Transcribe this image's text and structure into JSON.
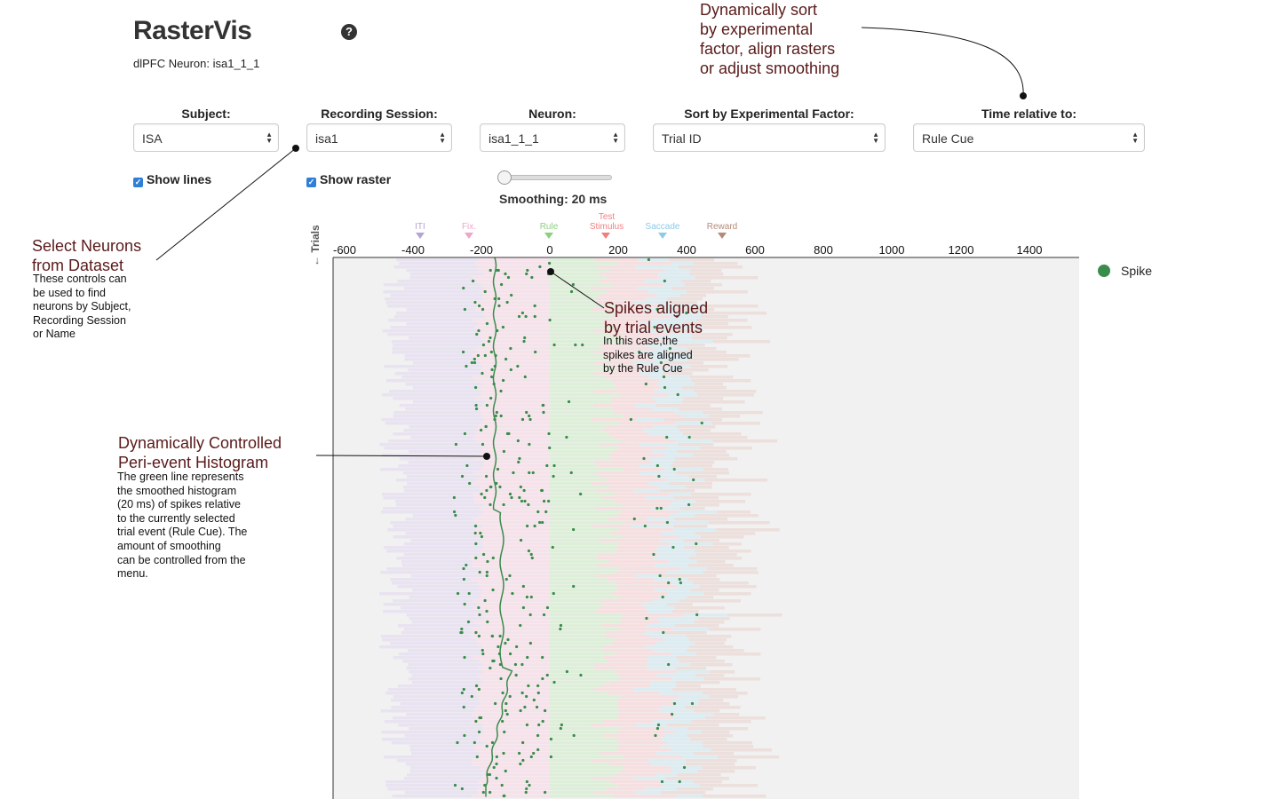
{
  "header": {
    "title": "RasterVis",
    "subtitle": "dlPFC Neuron: isa1_1_1"
  },
  "controls": {
    "subject": {
      "label": "Subject:",
      "value": "ISA"
    },
    "session": {
      "label": "Recording Session:",
      "value": "isa1"
    },
    "neuron": {
      "label": "Neuron:",
      "value": "isa1_1_1"
    },
    "sort": {
      "label": "Sort by Experimental Factor:",
      "value": "Trial ID"
    },
    "time_rel": {
      "label": "Time relative to:",
      "value": "Rule Cue"
    },
    "show_lines": "Show lines",
    "show_raster": "Show raster",
    "smoothing_label": "Smoothing: 20 ms",
    "smoothing_ms": 20
  },
  "events": [
    {
      "name": "ITI",
      "color": "#b7a4d6"
    },
    {
      "name": "Fix.",
      "color": "#f0a6c8"
    },
    {
      "name": "Rule",
      "color": "#8ccf7e"
    },
    {
      "name": "Test Stimulus",
      "color": "#f08080"
    },
    {
      "name": "Saccade",
      "color": "#8ccbe6"
    },
    {
      "name": "Reward",
      "color": "#b58a7a"
    }
  ],
  "axis": {
    "ticks": [
      "-600",
      "-400",
      "-200",
      "0",
      "200",
      "400",
      "600",
      "800",
      "1000",
      "1200",
      "1400"
    ],
    "ylabel": "← Trials"
  },
  "legend": {
    "label": "Spike",
    "color": "#3a8c4c"
  },
  "annotations": {
    "sort": {
      "title": "Dynamically sort\nby experimental\nfactor, align rasters\nor adjust smoothing"
    },
    "select": {
      "title": "Select Neurons\nfrom Dataset",
      "text": "These controls can\nbe used to find\nneurons by Subject,\nRecording Session\nor Name"
    },
    "aligned": {
      "title": "Spikes aligned\nby trial events",
      "text": "In this case,the\nspikes are aligned\nby the Rule Cue"
    },
    "histogram": {
      "title": "Dynamically Controlled\nPeri-event Histogram",
      "text": "The green line represents\nthe smoothed histogram\n(20 ms) of spikes relative\nto the currently selected\ntrial event (Rule Cue). The\namount of smoothing\ncan be controlled from the\nmenu."
    }
  }
}
